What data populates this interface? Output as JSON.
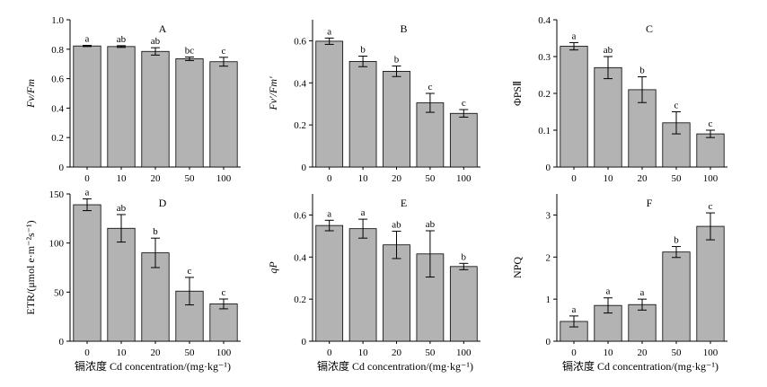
{
  "x_axis_title": "镉浓度  Cd concentration/(mg·kg⁻¹)",
  "chart_data": [
    {
      "type": "bar",
      "panel": "A",
      "ylabel": "Fv/Fm",
      "categories": [
        "0",
        "10",
        "20",
        "50",
        "100"
      ],
      "values": [
        0.822,
        0.818,
        0.785,
        0.735,
        0.715
      ],
      "errors": [
        0.004,
        0.006,
        0.025,
        0.012,
        0.03
      ],
      "letters": [
        "a",
        "ab",
        "ab",
        "bc",
        "c"
      ],
      "ylim": [
        0,
        1.0
      ],
      "yticks": [
        "0",
        "0.2",
        "0.4",
        "0.6",
        "0.8",
        "1.0"
      ],
      "ytick_values": [
        0,
        0.2,
        0.4,
        0.6,
        0.8,
        1.0
      ]
    },
    {
      "type": "bar",
      "panel": "B",
      "ylabel": "Fv′/Fm′",
      "categories": [
        "0",
        "10",
        "20",
        "50",
        "100"
      ],
      "values": [
        0.598,
        0.502,
        0.455,
        0.305,
        0.255
      ],
      "errors": [
        0.015,
        0.025,
        0.025,
        0.045,
        0.018
      ],
      "letters": [
        "a",
        "b",
        "b",
        "c",
        "c"
      ],
      "ylim": [
        0,
        0.7
      ],
      "yticks": [
        "0",
        "0.2",
        "0.4",
        "0.6"
      ],
      "ytick_values": [
        0,
        0.2,
        0.4,
        0.6
      ]
    },
    {
      "type": "bar",
      "panel": "C",
      "ylabel": "ΦPSⅡ",
      "categories": [
        "0",
        "10",
        "20",
        "50",
        "100"
      ],
      "values": [
        0.328,
        0.27,
        0.21,
        0.12,
        0.09
      ],
      "errors": [
        0.01,
        0.03,
        0.035,
        0.03,
        0.01
      ],
      "letters": [
        "a",
        "ab",
        "b",
        "c",
        "c"
      ],
      "ylim": [
        0,
        0.4
      ],
      "yticks": [
        "0",
        "0.1",
        "0.2",
        "0.3",
        "0.4"
      ],
      "ytick_values": [
        0,
        0.1,
        0.2,
        0.3,
        0.4
      ]
    },
    {
      "type": "bar",
      "panel": "D",
      "ylabel": "ETR/(μmol e·m⁻²s⁻¹)",
      "categories": [
        "0",
        "10",
        "20",
        "50",
        "100"
      ],
      "values": [
        139,
        115,
        90,
        51,
        38
      ],
      "errors": [
        6,
        14,
        15,
        14,
        5
      ],
      "letters": [
        "a",
        "ab",
        "b",
        "c",
        "c"
      ],
      "ylim": [
        0,
        150
      ],
      "yticks": [
        "0",
        "50",
        "100",
        "150"
      ],
      "ytick_values": [
        0,
        50,
        100,
        150
      ]
    },
    {
      "type": "bar",
      "panel": "E",
      "ylabel": "qP",
      "categories": [
        "0",
        "10",
        "20",
        "50",
        "100"
      ],
      "values": [
        0.55,
        0.535,
        0.458,
        0.415,
        0.355
      ],
      "errors": [
        0.025,
        0.045,
        0.065,
        0.11,
        0.015
      ],
      "letters": [
        "a",
        "a",
        "ab",
        "ab",
        "b"
      ],
      "ylim": [
        0,
        0.7
      ],
      "yticks": [
        "0",
        "0.2",
        "0.4",
        "0.6"
      ],
      "ytick_values": [
        0,
        0.2,
        0.4,
        0.6
      ]
    },
    {
      "type": "bar",
      "panel": "F",
      "ylabel": "NPQ",
      "categories": [
        "0",
        "10",
        "20",
        "50",
        "100"
      ],
      "values": [
        0.47,
        0.85,
        0.87,
        2.12,
        2.73
      ],
      "errors": [
        0.13,
        0.18,
        0.13,
        0.13,
        0.32
      ],
      "letters": [
        "a",
        "a",
        "a",
        "b",
        "c"
      ],
      "ylim": [
        0,
        3.5
      ],
      "yticks": [
        "0",
        "1",
        "2",
        "3"
      ],
      "ytick_values": [
        0,
        1,
        2,
        3
      ]
    }
  ]
}
